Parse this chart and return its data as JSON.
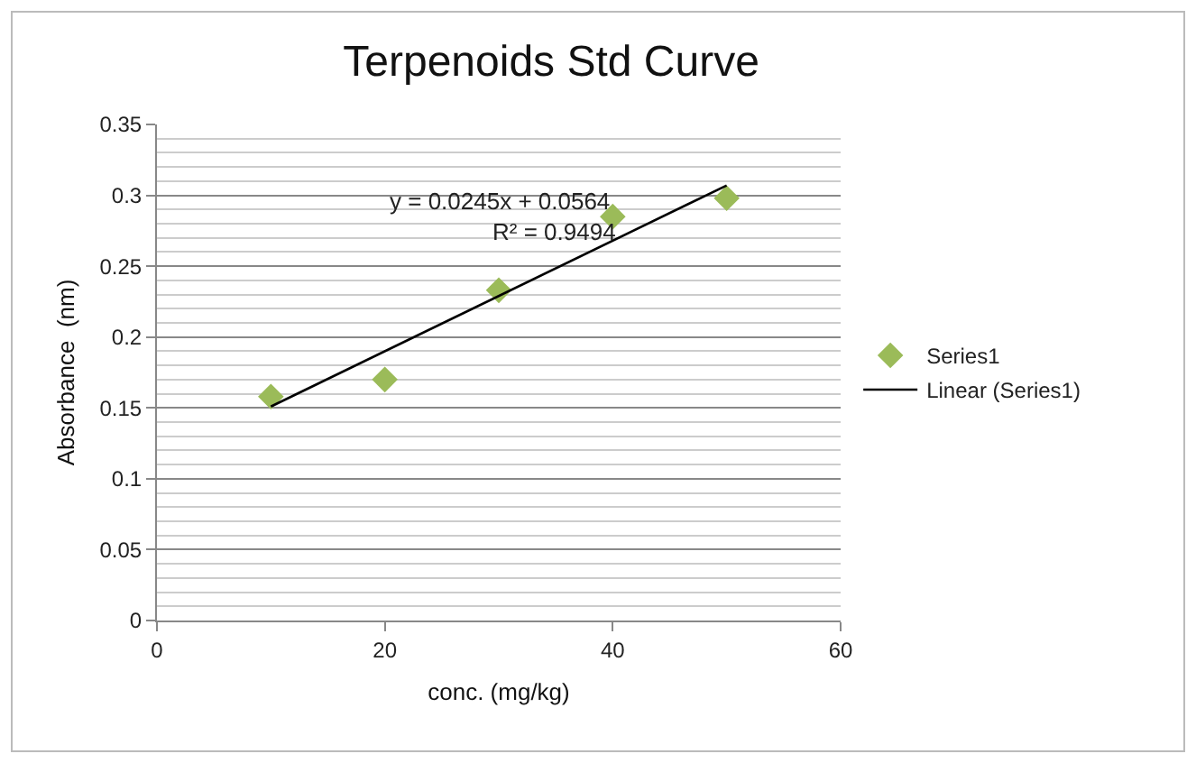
{
  "chart_data": {
    "type": "scatter",
    "title": "Terpenoids Std Curve",
    "xlabel": "conc. (mg/kg)",
    "ylabel": "Absorbance  (nm)",
    "series": [
      {
        "name": "Series1",
        "color": "#9bbb59",
        "marker": "diamond",
        "x": [
          10,
          20,
          30,
          40,
          50
        ],
        "values": [
          0.158,
          0.17,
          0.233,
          0.285,
          0.298
        ]
      },
      {
        "name": "Linear (Series1)",
        "type": "line",
        "color": "#000000",
        "marker": "none",
        "line_style": "solid",
        "x": [
          10,
          50
        ],
        "values": [
          0.151,
          0.307
        ]
      }
    ],
    "annotations": [
      "y = 0.0245x + 0.0564",
      "R² = 0.9494"
    ],
    "xlim": [
      0,
      60
    ],
    "xticks": [
      0,
      20,
      40,
      60
    ],
    "ylim": [
      0,
      0.35
    ],
    "yticks": [
      0,
      0.05,
      0.1,
      0.15,
      0.2,
      0.25,
      0.3,
      0.35
    ],
    "grid": "y",
    "legend": "right"
  }
}
